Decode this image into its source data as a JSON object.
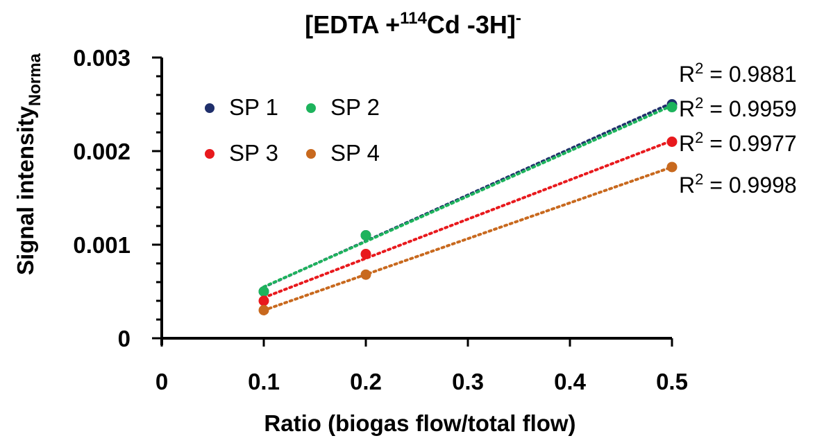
{
  "chart_data": {
    "type": "scatter",
    "title": {
      "main": "[EDTA +",
      "sup": "114",
      "rest": "Cd -3H]",
      "charge": "-"
    },
    "xlabel": "Ratio (biogas flow/total flow)",
    "ylabel": {
      "main": "Signal intensity",
      "sub": "Norma"
    },
    "xlim": [
      0,
      0.5
    ],
    "ylim": [
      0,
      0.003
    ],
    "x_ticks": [
      "0",
      "0.1",
      "0.2",
      "0.3",
      "0.4",
      "0.5"
    ],
    "y_ticks": [
      "0",
      "0.001",
      "0.002",
      "0.003"
    ],
    "x_tick_values": [
      0,
      0.1,
      0.2,
      0.3,
      0.4,
      0.5
    ],
    "y_tick_values": [
      0,
      0.001,
      0.002,
      0.003
    ],
    "legend_position": "top-left",
    "trendline": "linear, dotted",
    "series": [
      {
        "name": "SP 1",
        "color": "#1f2f6b",
        "x": [
          0.1,
          0.2,
          0.5
        ],
        "y": [
          0.0005,
          0.0011,
          0.0025
        ],
        "r2_label": "R",
        "r2_value": " = 0.9881"
      },
      {
        "name": "SP 2",
        "color": "#1db35c",
        "x": [
          0.1,
          0.2,
          0.5
        ],
        "y": [
          0.0005,
          0.0011,
          0.00247
        ],
        "r2_label": "R",
        "r2_value": " = 0.9959"
      },
      {
        "name": "SP 3",
        "color": "#e8191d",
        "x": [
          0.1,
          0.2,
          0.5
        ],
        "y": [
          0.0004,
          0.0009,
          0.0021
        ],
        "r2_label": "R",
        "r2_value": " = 0.9977"
      },
      {
        "name": "SP 4",
        "color": "#c8691e",
        "x": [
          0.1,
          0.2,
          0.5
        ],
        "y": [
          0.0003,
          0.00068,
          0.00183
        ],
        "r2_label": "R",
        "r2_value": " = 0.9998"
      }
    ],
    "r2_sup": "2"
  }
}
